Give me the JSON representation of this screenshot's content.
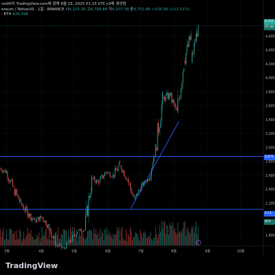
{
  "header": {
    "line1": "vis00이 TradingView.com에 함께 8월 23, 2025 01:15 UTC+9에 생성됨",
    "symbol": "ereum / TetherUS · 1일 · BINANCE",
    "ohlc_open_label": "시",
    "ohlc_open": "4,225.30",
    "ohlc_high_label": "고",
    "ohlc_high": "4,768.88",
    "ohlc_low_label": "저",
    "ohlc_low": "4,207.39",
    "ohlc_close_label": "종",
    "ohlc_close": "4,751.86",
    "change": "+526.56 (+12.51%)",
    "vol_label": "· ETH",
    "vol_value": "826.49K"
  },
  "price_axis": {
    "ticks": [
      "4,600",
      "4,400",
      "4,200",
      "4,000",
      "3,800",
      "3,600",
      "3,400",
      "3,200",
      "3,000",
      "2,800",
      "2,600",
      "2,400",
      "2,200",
      "1,800"
    ],
    "current_price": "4,751.",
    "countdown": "07:44",
    "level_upper": "2,871",
    "level_lower": "2,11",
    "volume_tag": "826",
    "current_color": "#26a69a",
    "level_color": "#2962ff"
  },
  "time_axis": {
    "labels": [
      "3월",
      "4월",
      "5월",
      "6월",
      "7월",
      "8월",
      "9월",
      "10월"
    ]
  },
  "footer": {
    "brand": "TradingView"
  },
  "chart_data": {
    "type": "candlestick",
    "title": "",
    "ylim": [
      1750,
      4800
    ],
    "horizontal_levels": [
      2871,
      2113
    ],
    "trendline": [
      {
        "x": "2025-06-22",
        "y": 2120
      },
      {
        "x": "2025-08-02",
        "y": 3370
      }
    ],
    "candles_approx": [
      [
        "2025-02-15",
        2700,
        2800,
        2550,
        2650
      ],
      [
        "2025-02-22",
        2650,
        2700,
        2300,
        2400
      ],
      [
        "2025-03-01",
        2400,
        2500,
        2100,
        2200
      ],
      [
        "2025-03-08",
        2200,
        2300,
        1950,
        2050
      ],
      [
        "2025-03-15",
        2050,
        2150,
        1850,
        1950
      ],
      [
        "2025-03-22",
        1950,
        2100,
        1850,
        2000
      ],
      [
        "2025-03-29",
        2000,
        2050,
        1800,
        1850
      ],
      [
        "2025-04-05",
        1850,
        1900,
        1550,
        1600
      ],
      [
        "2025-04-12",
        1600,
        1700,
        1450,
        1550
      ],
      [
        "2025-04-19",
        1550,
        1700,
        1500,
        1650
      ],
      [
        "2025-04-26",
        1650,
        1850,
        1600,
        1800
      ],
      [
        "2025-05-03",
        1800,
        1900,
        1750,
        1820
      ],
      [
        "2025-05-10",
        1820,
        2600,
        1800,
        2550
      ],
      [
        "2025-05-17",
        2550,
        2650,
        2400,
        2500
      ],
      [
        "2025-05-24",
        2500,
        2750,
        2450,
        2650
      ],
      [
        "2025-05-31",
        2650,
        2750,
        2500,
        2600
      ],
      [
        "2025-06-07",
        2600,
        2850,
        2500,
        2750
      ],
      [
        "2025-06-14",
        2750,
        2800,
        2500,
        2550
      ],
      [
        "2025-06-21",
        2550,
        2600,
        2150,
        2250
      ],
      [
        "2025-06-28",
        2250,
        2500,
        2200,
        2450
      ],
      [
        "2025-07-05",
        2450,
        2600,
        2400,
        2550
      ],
      [
        "2025-07-12",
        2550,
        3050,
        2500,
        3000
      ],
      [
        "2025-07-19",
        3000,
        3800,
        2950,
        3700
      ],
      [
        "2025-07-26",
        3700,
        3900,
        3550,
        3750
      ],
      [
        "2025-08-02",
        3750,
        3800,
        3350,
        3500
      ],
      [
        "2025-08-09",
        3500,
        4400,
        3450,
        4250
      ],
      [
        "2025-08-16",
        4250,
        4800,
        4150,
        4600
      ],
      [
        "2025-08-22",
        4225.3,
        4768.88,
        4207.39,
        4751.86
      ]
    ]
  }
}
